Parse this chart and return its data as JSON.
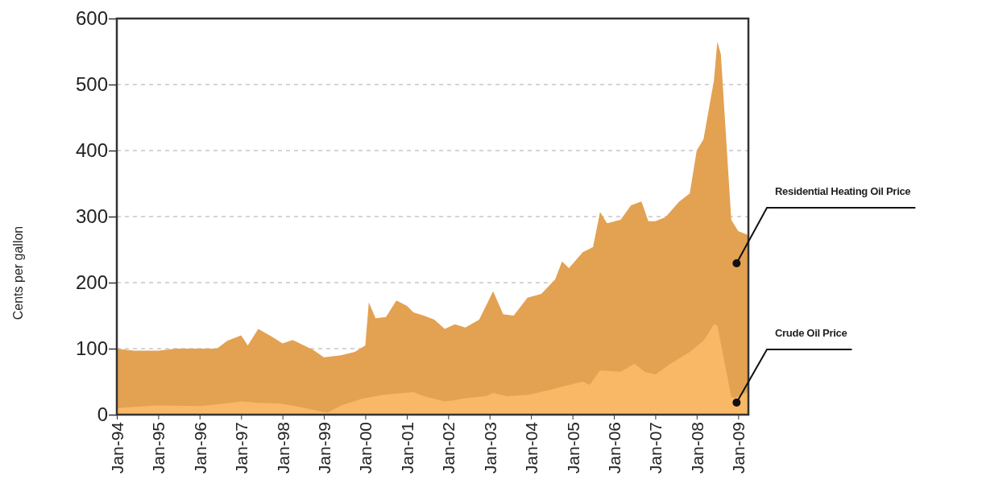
{
  "chart_data": {
    "type": "area",
    "ylabel": "Cents per gallon",
    "xlim": [
      "1994-01",
      "2009-04"
    ],
    "ylim": [
      0,
      600
    ],
    "yticks": [
      0,
      100,
      200,
      300,
      400,
      500,
      600
    ],
    "xticks": [
      {
        "value": "1994-01",
        "label": "Jan-94"
      },
      {
        "value": "1995-01",
        "label": "Jan-95"
      },
      {
        "value": "1996-01",
        "label": "Jan-96"
      },
      {
        "value": "1997-01",
        "label": "Jan-97"
      },
      {
        "value": "1998-01",
        "label": "Jan-98"
      },
      {
        "value": "1999-01",
        "label": "Jan-99"
      },
      {
        "value": "2000-01",
        "label": "Jan-00"
      },
      {
        "value": "2001-01",
        "label": "Jan-01"
      },
      {
        "value": "2002-01",
        "label": "Jan-02"
      },
      {
        "value": "2003-01",
        "label": "Jan-03"
      },
      {
        "value": "2004-01",
        "label": "Jan-04"
      },
      {
        "value": "2005-01",
        "label": "Jan-05"
      },
      {
        "value": "2006-01",
        "label": "Jan-06"
      },
      {
        "value": "2007-01",
        "label": "Jan-07"
      },
      {
        "value": "2008-01",
        "label": "Jan-08"
      },
      {
        "value": "2009-01",
        "label": "Jan-09"
      }
    ],
    "grid": "y",
    "series": [
      {
        "name": "Residential Heating Oil Price",
        "color": "#e3a152",
        "x": [
          "1994-01",
          "1994-06",
          "1995-01",
          "1995-06",
          "1996-01",
          "1996-06",
          "1996-09",
          "1997-01",
          "1997-03",
          "1997-06",
          "1997-10",
          "1998-01",
          "1998-04",
          "1998-10",
          "1999-01",
          "1999-06",
          "1999-10",
          "2000-01",
          "2000-02",
          "2000-04",
          "2000-07",
          "2000-10",
          "2001-01",
          "2001-03",
          "2001-06",
          "2001-09",
          "2001-12",
          "2002-03",
          "2002-06",
          "2002-10",
          "2003-02",
          "2003-05",
          "2003-08",
          "2003-12",
          "2004-04",
          "2004-08",
          "2004-10",
          "2004-12",
          "2005-04",
          "2005-07",
          "2005-09",
          "2005-11",
          "2006-03",
          "2006-06",
          "2006-09",
          "2006-11",
          "2007-01",
          "2007-04",
          "2007-08",
          "2007-11",
          "2008-01",
          "2008-03",
          "2008-06",
          "2008-07",
          "2008-08",
          "2008-11",
          "2009-01",
          "2009-04"
        ],
        "values": [
          100,
          97,
          97,
          100,
          100,
          100,
          112,
          120,
          105,
          130,
          118,
          108,
          113,
          98,
          87,
          90,
          95,
          105,
          170,
          146,
          148,
          173,
          165,
          155,
          150,
          144,
          130,
          137,
          132,
          144,
          187,
          152,
          150,
          177,
          183,
          205,
          232,
          222,
          246,
          254,
          307,
          290,
          295,
          317,
          323,
          293,
          293,
          299,
          323,
          335,
          400,
          417,
          506,
          565,
          546,
          295,
          278,
          272
        ]
      },
      {
        "name": "Crude Oil Price",
        "color": "#f8b866",
        "x": [
          "1994-01",
          "1994-06",
          "1995-01",
          "1996-01",
          "1996-10",
          "1997-01",
          "1997-06",
          "1997-12",
          "1998-06",
          "1998-12",
          "1999-02",
          "1999-06",
          "1999-12",
          "2000-06",
          "2000-12",
          "2001-03",
          "2001-06",
          "2001-12",
          "2002-03",
          "2002-06",
          "2002-12",
          "2003-02",
          "2003-06",
          "2003-12",
          "2004-06",
          "2004-12",
          "2005-04",
          "2005-06",
          "2005-09",
          "2006-03",
          "2006-07",
          "2006-10",
          "2007-01",
          "2007-06",
          "2007-11",
          "2008-03",
          "2008-06",
          "2008-07",
          "2008-11",
          "2008-12",
          "2009-04"
        ],
        "values": [
          10,
          12,
          14,
          13,
          18,
          20,
          18,
          17,
          12,
          5,
          3,
          14,
          24,
          30,
          33,
          34,
          28,
          20,
          22,
          25,
          28,
          33,
          28,
          30,
          37,
          45,
          50,
          45,
          67,
          65,
          77,
          65,
          61,
          79,
          95,
          112,
          137,
          135,
          27,
          25,
          35
        ]
      }
    ]
  }
}
